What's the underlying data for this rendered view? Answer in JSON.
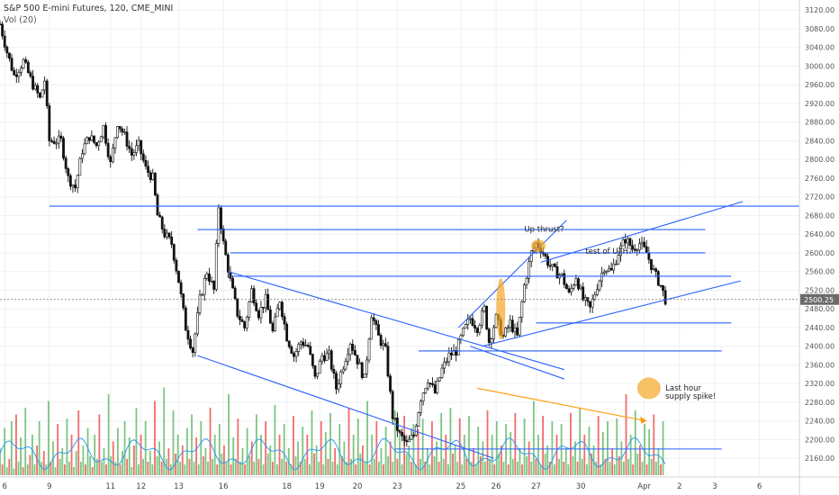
{
  "chart_data": {
    "type": "candlestick",
    "title": "S&P 500 E-mini Futures, 120, CME_MINI",
    "subtitle": "Vol (20)",
    "last_price": 2500.25,
    "ylim": [
      2120,
      3130
    ],
    "xlim": [
      0,
      340
    ],
    "y_ticks": [
      3120,
      3080,
      3040,
      3000,
      2960,
      2920,
      2880,
      2840,
      2800,
      2760,
      2720,
      2680,
      2640,
      2600,
      2560,
      2520,
      2480,
      2440,
      2400,
      2360,
      2320,
      2280,
      2240,
      2200,
      2160
    ],
    "x_ticks": [
      {
        "label": "6",
        "bar": 2
      },
      {
        "label": "9",
        "bar": 21
      },
      {
        "label": "11",
        "bar": 47
      },
      {
        "label": "12",
        "bar": 60
      },
      {
        "label": "13",
        "bar": 76
      },
      {
        "label": "16",
        "bar": 95
      },
      {
        "label": "18",
        "bar": 122
      },
      {
        "label": "19",
        "bar": 136
      },
      {
        "label": "20",
        "bar": 152
      },
      {
        "label": "23",
        "bar": 169
      },
      {
        "label": "25",
        "bar": 196
      },
      {
        "label": "26",
        "bar": 211
      },
      {
        "label": "27",
        "bar": 228
      },
      {
        "label": "30",
        "bar": 247
      },
      {
        "label": "Apr",
        "bar": 274
      },
      {
        "label": "2",
        "bar": 289
      },
      {
        "label": "3",
        "bar": 304
      },
      {
        "label": "6",
        "bar": 323
      }
    ],
    "price_path": [
      [
        0,
        3090
      ],
      [
        3,
        3030
      ],
      [
        6,
        2980
      ],
      [
        10,
        3010
      ],
      [
        14,
        2960
      ],
      [
        17,
        2930
      ],
      [
        19,
        2970
      ],
      [
        21,
        2840
      ],
      [
        26,
        2840
      ],
      [
        29,
        2760
      ],
      [
        32,
        2740
      ],
      [
        35,
        2820
      ],
      [
        38,
        2850
      ],
      [
        41,
        2830
      ],
      [
        44,
        2870
      ],
      [
        47,
        2790
      ],
      [
        50,
        2880
      ],
      [
        53,
        2850
      ],
      [
        56,
        2810
      ],
      [
        59,
        2830
      ],
      [
        62,
        2780
      ],
      [
        65,
        2760
      ],
      [
        67,
        2680
      ],
      [
        70,
        2640
      ],
      [
        73,
        2620
      ],
      [
        76,
        2540
      ],
      [
        79,
        2440
      ],
      [
        82,
        2390
      ],
      [
        85,
        2500
      ],
      [
        88,
        2560
      ],
      [
        91,
        2520
      ],
      [
        93,
        2700
      ],
      [
        95,
        2620
      ],
      [
        98,
        2540
      ],
      [
        101,
        2470
      ],
      [
        104,
        2440
      ],
      [
        107,
        2520
      ],
      [
        110,
        2470
      ],
      [
        113,
        2500
      ],
      [
        116,
        2430
      ],
      [
        119,
        2500
      ],
      [
        122,
        2420
      ],
      [
        125,
        2380
      ],
      [
        128,
        2410
      ],
      [
        131,
        2400
      ],
      [
        134,
        2330
      ],
      [
        137,
        2380
      ],
      [
        140,
        2380
      ],
      [
        143,
        2310
      ],
      [
        146,
        2360
      ],
      [
        149,
        2410
      ],
      [
        152,
        2370
      ],
      [
        155,
        2330
      ],
      [
        158,
        2470
      ],
      [
        161,
        2420
      ],
      [
        164,
        2390
      ],
      [
        167,
        2250
      ],
      [
        170,
        2210
      ],
      [
        173,
        2190
      ],
      [
        176,
        2210
      ],
      [
        179,
        2290
      ],
      [
        182,
        2330
      ],
      [
        185,
        2300
      ],
      [
        188,
        2350
      ],
      [
        191,
        2380
      ],
      [
        194,
        2390
      ],
      [
        197,
        2430
      ],
      [
        200,
        2460
      ],
      [
        203,
        2440
      ],
      [
        206,
        2480
      ],
      [
        208,
        2410
      ],
      [
        211,
        2460
      ],
      [
        214,
        2420
      ],
      [
        217,
        2450
      ],
      [
        220,
        2420
      ],
      [
        223,
        2530
      ],
      [
        226,
        2600
      ],
      [
        228,
        2620
      ],
      [
        230,
        2610
      ],
      [
        233,
        2580
      ],
      [
        236,
        2560
      ],
      [
        239,
        2550
      ],
      [
        242,
        2510
      ],
      [
        245,
        2550
      ],
      [
        248,
        2500
      ],
      [
        251,
        2480
      ],
      [
        254,
        2530
      ],
      [
        257,
        2570
      ],
      [
        260,
        2560
      ],
      [
        263,
        2600
      ],
      [
        266,
        2630
      ],
      [
        269,
        2610
      ],
      [
        272,
        2620
      ],
      [
        275,
        2600
      ],
      [
        278,
        2560
      ],
      [
        281,
        2530
      ],
      [
        283,
        2500
      ]
    ],
    "volume_max": 100,
    "volume": [
      20,
      8,
      35,
      6,
      12,
      40,
      5,
      45,
      10,
      28,
      6,
      50,
      8,
      15,
      30,
      8,
      22,
      40,
      10,
      18,
      8,
      55,
      10,
      25,
      6,
      38,
      12,
      20,
      8,
      42,
      10,
      30,
      6,
      18,
      48,
      10,
      22,
      8,
      35,
      14,
      6,
      30,
      12,
      45,
      10,
      20,
      8,
      60,
      14,
      25,
      10,
      35,
      8,
      18,
      40,
      12,
      28,
      6,
      22,
      50,
      8,
      30,
      12,
      40,
      10,
      18,
      8,
      55,
      14,
      25,
      10,
      65,
      12,
      20,
      8,
      48,
      16,
      30,
      10,
      22,
      8,
      35,
      12,
      45,
      10,
      28,
      8,
      40,
      14,
      20,
      10,
      50,
      12,
      30,
      8,
      38,
      16,
      22,
      10,
      60,
      8,
      28,
      12,
      42,
      10,
      20,
      8,
      35,
      14,
      25,
      10,
      45,
      12,
      30,
      8,
      40,
      16,
      22,
      10,
      52,
      8,
      30,
      12,
      38,
      10,
      20,
      8,
      44,
      14,
      25,
      10,
      36,
      12,
      30,
      8,
      48,
      16,
      22,
      10,
      40,
      8,
      32,
      12,
      46,
      10,
      20,
      8,
      38,
      14,
      25,
      10,
      50,
      12,
      30,
      8,
      42,
      16,
      22,
      10,
      55,
      8,
      30,
      12,
      40,
      10,
      20,
      8,
      36,
      14,
      25,
      10,
      48,
      12,
      30,
      8,
      44,
      16,
      22,
      10,
      38,
      8,
      34,
      12,
      42,
      10,
      20,
      8,
      40,
      14,
      25,
      10,
      46,
      12,
      30,
      8,
      50,
      16,
      22,
      10,
      42,
      8,
      30,
      12,
      44,
      10,
      20,
      8,
      36,
      14,
      25,
      10,
      48,
      12,
      30,
      8,
      40,
      16,
      22,
      10,
      38,
      8,
      32,
      12,
      46,
      10,
      20,
      8,
      42,
      14,
      25,
      10,
      55,
      12,
      30,
      8,
      44,
      16,
      22,
      10,
      40,
      8,
      30,
      12,
      38,
      10,
      20,
      8,
      46,
      14,
      25,
      10,
      50,
      12,
      30,
      8,
      36,
      16,
      22,
      10,
      44,
      8,
      32,
      12,
      40,
      10,
      20,
      8,
      42,
      14,
      25,
      10,
      60,
      12,
      30,
      8,
      48,
      16,
      22,
      10,
      38,
      8,
      34,
      12,
      45,
      10,
      20,
      8,
      40
    ],
    "lines": [
      {
        "name": "hline-2700",
        "color": "#2962ff",
        "points": [
          [
            21,
            2700
          ],
          [
            340,
            2700
          ]
        ]
      },
      {
        "name": "hline-2650",
        "color": "#2962ff",
        "points": [
          [
            84,
            2650
          ],
          [
            300,
            2650
          ]
        ]
      },
      {
        "name": "hline-2600",
        "color": "#2962ff",
        "points": [
          [
            98,
            2600
          ],
          [
            300,
            2600
          ]
        ]
      },
      {
        "name": "hline-2550",
        "color": "#2962ff",
        "points": [
          [
            98,
            2550
          ],
          [
            311,
            2550
          ]
        ]
      },
      {
        "name": "hline-2450",
        "color": "#2962ff",
        "points": [
          [
            228,
            2450
          ],
          [
            311,
            2450
          ]
        ]
      },
      {
        "name": "hline-2390",
        "color": "#2962ff",
        "points": [
          [
            178,
            2390
          ],
          [
            307,
            2390
          ]
        ]
      },
      {
        "name": "hline-2180",
        "color": "#2962ff",
        "points": [
          [
            168,
            2180
          ],
          [
            307,
            2180
          ]
        ]
      },
      {
        "name": "downtrend-top",
        "color": "#2962ff",
        "points": [
          [
            97,
            2560
          ],
          [
            240,
            2350
          ]
        ]
      },
      {
        "name": "downtrend-bottom",
        "color": "#2962ff",
        "points": [
          [
            84,
            2380
          ],
          [
            210,
            2160
          ]
        ]
      },
      {
        "name": "lower-channel",
        "color": "#2962ff",
        "points": [
          [
            205,
            2400
          ],
          [
            315,
            2540
          ]
        ]
      },
      {
        "name": "upper-channel",
        "color": "#2962ff",
        "points": [
          [
            230,
            2580
          ],
          [
            316,
            2710
          ]
        ]
      },
      {
        "name": "steep-trend",
        "color": "#2962ff",
        "points": [
          [
            195,
            2440
          ],
          [
            241,
            2670
          ]
        ]
      },
      {
        "name": "fork-line",
        "color": "#2962ff",
        "points": [
          [
            200,
            2400
          ],
          [
            240,
            2330
          ]
        ]
      },
      {
        "name": "volume-trend",
        "color": "#ff9800",
        "points": [
          [
            203,
            2310
          ],
          [
            275,
            2240
          ]
        ]
      }
    ],
    "annotations": [
      {
        "text": "Up thrust?",
        "bar": 223,
        "price": 2645
      },
      {
        "text": "test of UTH?",
        "bar": 249,
        "price": 2598
      },
      {
        "text": "Last hour",
        "bar": 283,
        "price": 2305
      },
      {
        "text": "supply spike!",
        "bar": 283,
        "price": 2288
      }
    ],
    "highlights": [
      {
        "bar": 213,
        "price": 2480,
        "rx": 5,
        "ry": 34
      },
      {
        "bar": 229,
        "price": 2615,
        "rx": 8,
        "ry": 7
      },
      {
        "bar": 276,
        "price": 2310,
        "rx": 13,
        "ry": 12
      }
    ],
    "colors": {
      "up": "#111111",
      "down": "#111111",
      "volume_up": "#66bb6a",
      "volume_down": "#ef5350",
      "ma": "#2196f3",
      "trend": "#2962ff",
      "price_badge": "#6b6b6b"
    }
  }
}
